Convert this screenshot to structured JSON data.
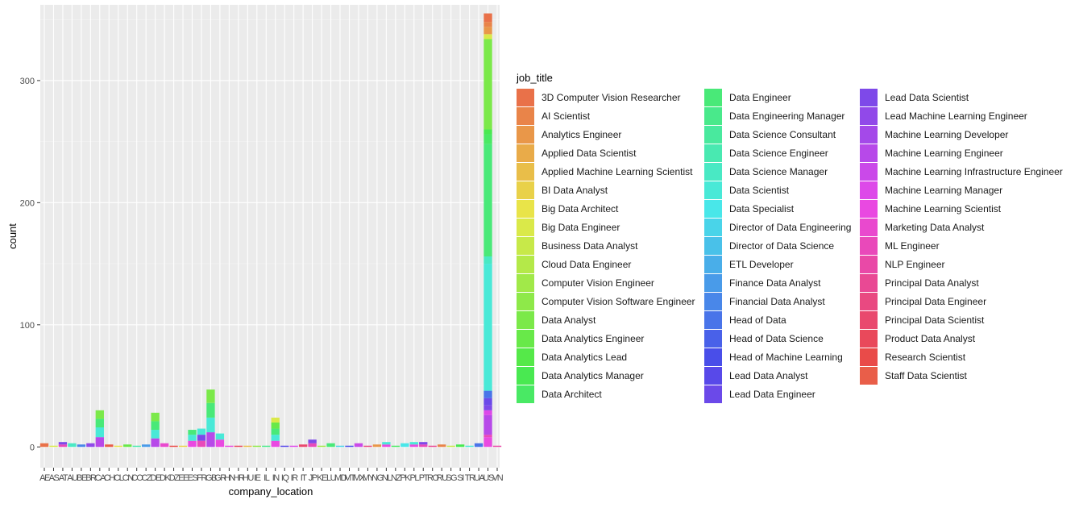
{
  "chart_data": {
    "type": "bar",
    "stacked": true,
    "title": "",
    "xlabel": "company_location",
    "ylabel": "count",
    "ylim": [
      -17,
      362
    ],
    "y_ticks": [
      0,
      100,
      200,
      300
    ],
    "y_tick_labels": [
      "0",
      "100",
      "200",
      "300"
    ],
    "grid": true,
    "legend_position": "right",
    "legend_title": "job_title",
    "categories": [
      "AE",
      "AS",
      "AT",
      "AU",
      "BE",
      "BR",
      "CA",
      "CH",
      "CL",
      "CN",
      "CO",
      "CZ",
      "DE",
      "DK",
      "DZ",
      "EE",
      "ES",
      "FR",
      "GB",
      "GR",
      "HN",
      "HR",
      "HU",
      "IE",
      "IL",
      "IN",
      "IQ",
      "IR",
      "IT",
      "JP",
      "KE",
      "LU",
      "MD",
      "MT",
      "MX",
      "MY",
      "NG",
      "NL",
      "NZ",
      "PK",
      "PL",
      "PT",
      "RO",
      "RU",
      "SG",
      "SI",
      "TR",
      "UA",
      "US",
      "VN"
    ],
    "x_tick_text_shown": "AEASATAUBEBRCACHCLCNCOCZDEDKDZEEESFRGBGRHNHRHUIEILINIQIRITJPKELUMDMTMXMYNGNLNZPKPLPTRORUSGSITRUAUSVN",
    "totals": [
      3,
      1,
      4,
      3,
      2,
      3,
      30,
      2,
      1,
      2,
      1,
      2,
      28,
      3,
      1,
      1,
      14,
      15,
      47,
      11,
      1,
      1,
      1,
      1,
      1,
      24,
      1,
      1,
      2,
      6,
      1,
      3,
      1,
      1,
      3,
      1,
      2,
      4,
      1,
      3,
      4,
      4,
      1,
      2,
      1,
      2,
      1,
      3,
      355,
      1
    ],
    "job_titles": [
      "3D Computer Vision Researcher",
      "AI Scientist",
      "Analytics Engineer",
      "Applied Data Scientist",
      "Applied Machine Learning Scientist",
      "BI Data Analyst",
      "Big Data Architect",
      "Big Data Engineer",
      "Business Data Analyst",
      "Cloud Data Engineer",
      "Computer Vision Engineer",
      "Computer Vision Software Engineer",
      "Data Analyst",
      "Data Analytics Engineer",
      "Data Analytics Lead",
      "Data Analytics Manager",
      "Data Architect",
      "Data Engineer",
      "Data Engineering Manager",
      "Data Science Consultant",
      "Data Science Engineer",
      "Data Science Manager",
      "Data Scientist",
      "Data Specialist",
      "Director of Data Engineering",
      "Director of Data Science",
      "ETL Developer",
      "Finance Data Analyst",
      "Financial Data Analyst",
      "Head of Data",
      "Head of Data Science",
      "Head of Machine Learning",
      "Lead Data Analyst",
      "Lead Data Engineer",
      "Lead Data Scientist",
      "Lead Machine Learning Engineer",
      "Machine Learning Developer",
      "Machine Learning Engineer",
      "Machine Learning Infrastructure Engineer",
      "Machine Learning Manager",
      "Machine Learning Scientist",
      "Marketing Data Analyst",
      "ML Engineer",
      "NLP Engineer",
      "Principal Data Analyst",
      "Principal Data Engineer",
      "Principal Data Scientist",
      "Product Data Analyst",
      "Research Scientist",
      "Staff Data Scientist"
    ],
    "segment_note": [],
    "us_segments": [
      {
        "title": "Machine Learning Scientist",
        "count": 8
      },
      {
        "title": "ML Engineer",
        "count": 2
      },
      {
        "title": "Machine Learning Engineer",
        "count": 16
      },
      {
        "title": "Machine Learning Manager",
        "count": 4
      },
      {
        "title": "Lead Data Scientist",
        "count": 4
      },
      {
        "title": "Lead Data Engineer",
        "count": 6
      },
      {
        "title": "Head of Data",
        "count": 6
      },
      {
        "title": "Data Scientist",
        "count": 104
      },
      {
        "title": "Data Science Manager",
        "count": 6
      },
      {
        "title": "Data Engineer",
        "count": 92
      },
      {
        "title": "Data Architect",
        "count": 8
      },
      {
        "title": "Data Analytics Manager",
        "count": 4
      },
      {
        "title": "Data Analyst",
        "count": 74
      },
      {
        "title": "Big Data Engineer",
        "count": 4
      },
      {
        "title": "Analytics Engineer",
        "count": 6
      },
      {
        "title": "AI Scientist",
        "count": 4
      },
      {
        "title": "3D Computer Vision Researcher",
        "count": 7
      }
    ]
  }
}
